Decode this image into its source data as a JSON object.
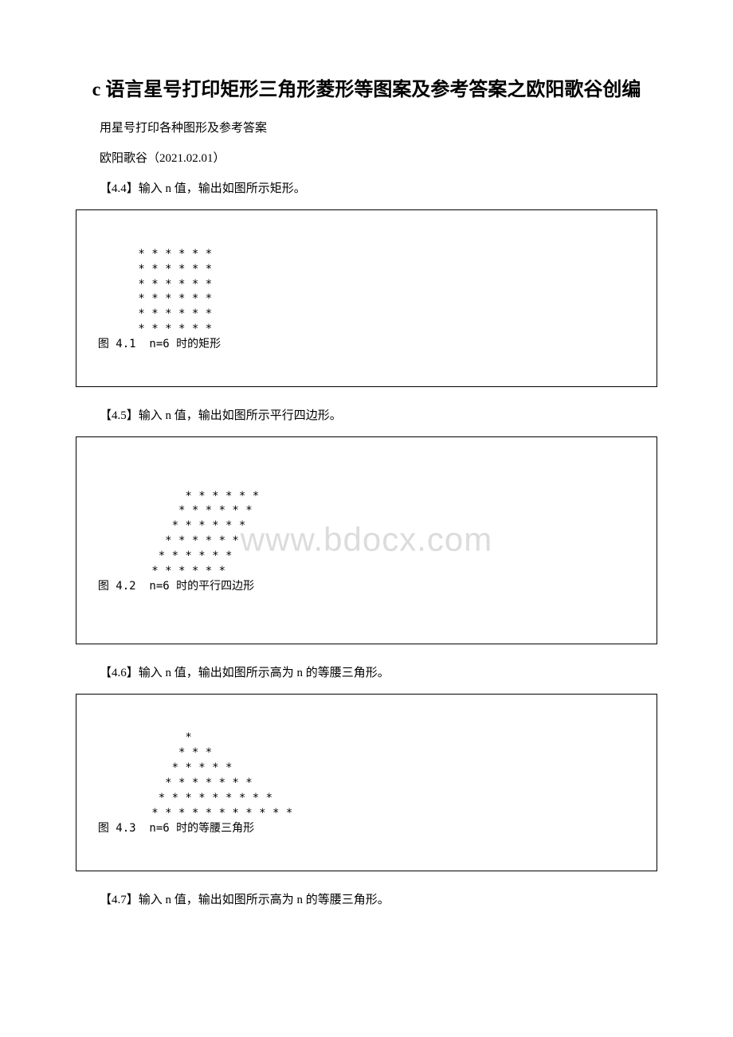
{
  "title": "c 语言星号打印矩形三角形菱形等图案及参考答案之欧阳歌谷创编",
  "subtitle": "用星号打印各种图形及参考答案",
  "author_line": "欧阳歌谷（2021.02.01）",
  "problems": {
    "p44": {
      "prompt": "【4.4】输入 n 值，输出如图所示矩形。",
      "code": "        * * * * * *\n        * * * * * *\n        * * * * * *\n        * * * * * *\n        * * * * * *\n        * * * * * *\n  图 4.1  n=6 时的矩形"
    },
    "p45": {
      "prompt": "【4.5】输入 n 值，输出如图所示平行四边形。",
      "code": "               * * * * * *\n              * * * * * *\n             * * * * * *\n            * * * * * *\n           * * * * * *\n          * * * * * *\n  图 4.2  n=6 时的平行四边形"
    },
    "p46": {
      "prompt": "【4.6】输入 n 值，输出如图所示高为 n 的等腰三角形。",
      "code": "               *\n              * * *\n             * * * * *\n            * * * * * * *\n           * * * * * * * * *\n          * * * * * * * * * * *\n  图 4.3  n=6 时的等腰三角形"
    },
    "p47": {
      "prompt": "【4.7】输入 n 值，输出如图所示高为 n 的等腰三角形。"
    }
  },
  "watermark": "www.bdocx.com",
  "colors": {
    "text": "#000000",
    "background": "#ffffff",
    "watermark": "#dcdcdc",
    "border": "#000000"
  },
  "typography": {
    "title_fontsize": 24,
    "body_fontsize": 15,
    "code_fontsize": 14,
    "watermark_fontsize": 42
  }
}
